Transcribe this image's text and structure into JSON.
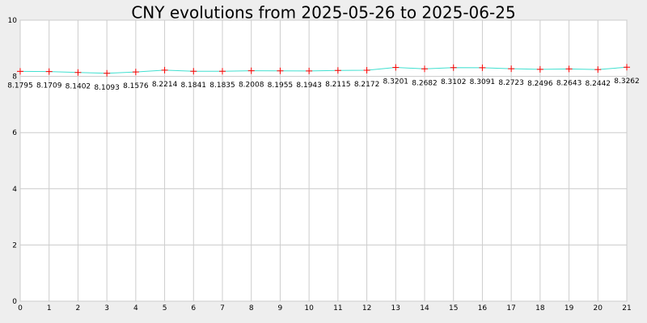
{
  "chart_data": {
    "type": "line",
    "title": "CNY evolutions from 2025-05-26 to 2025-06-25",
    "x": [
      0,
      1,
      2,
      3,
      4,
      5,
      6,
      7,
      8,
      9,
      10,
      11,
      12,
      13,
      14,
      15,
      16,
      17,
      18,
      19,
      20,
      21
    ],
    "values": [
      8.1795,
      8.1709,
      8.1402,
      8.1093,
      8.1576,
      8.2214,
      8.1841,
      8.1835,
      8.2008,
      8.1955,
      8.1943,
      8.2115,
      8.2172,
      8.3201,
      8.2682,
      8.3102,
      8.3091,
      8.2723,
      8.2496,
      8.2643,
      8.2442,
      8.3262
    ],
    "color": "#40e0d0",
    "marker_color": "#ff0000",
    "xlim": [
      0,
      21
    ],
    "xticks": [
      0,
      1,
      2,
      3,
      4,
      5,
      6,
      7,
      8,
      9,
      10,
      11,
      12,
      13,
      14,
      15,
      16,
      17,
      18,
      19,
      20,
      21
    ],
    "ylim": [
      0,
      10
    ],
    "yticks": [
      0,
      2,
      4,
      6,
      8,
      10
    ],
    "grid": true
  }
}
